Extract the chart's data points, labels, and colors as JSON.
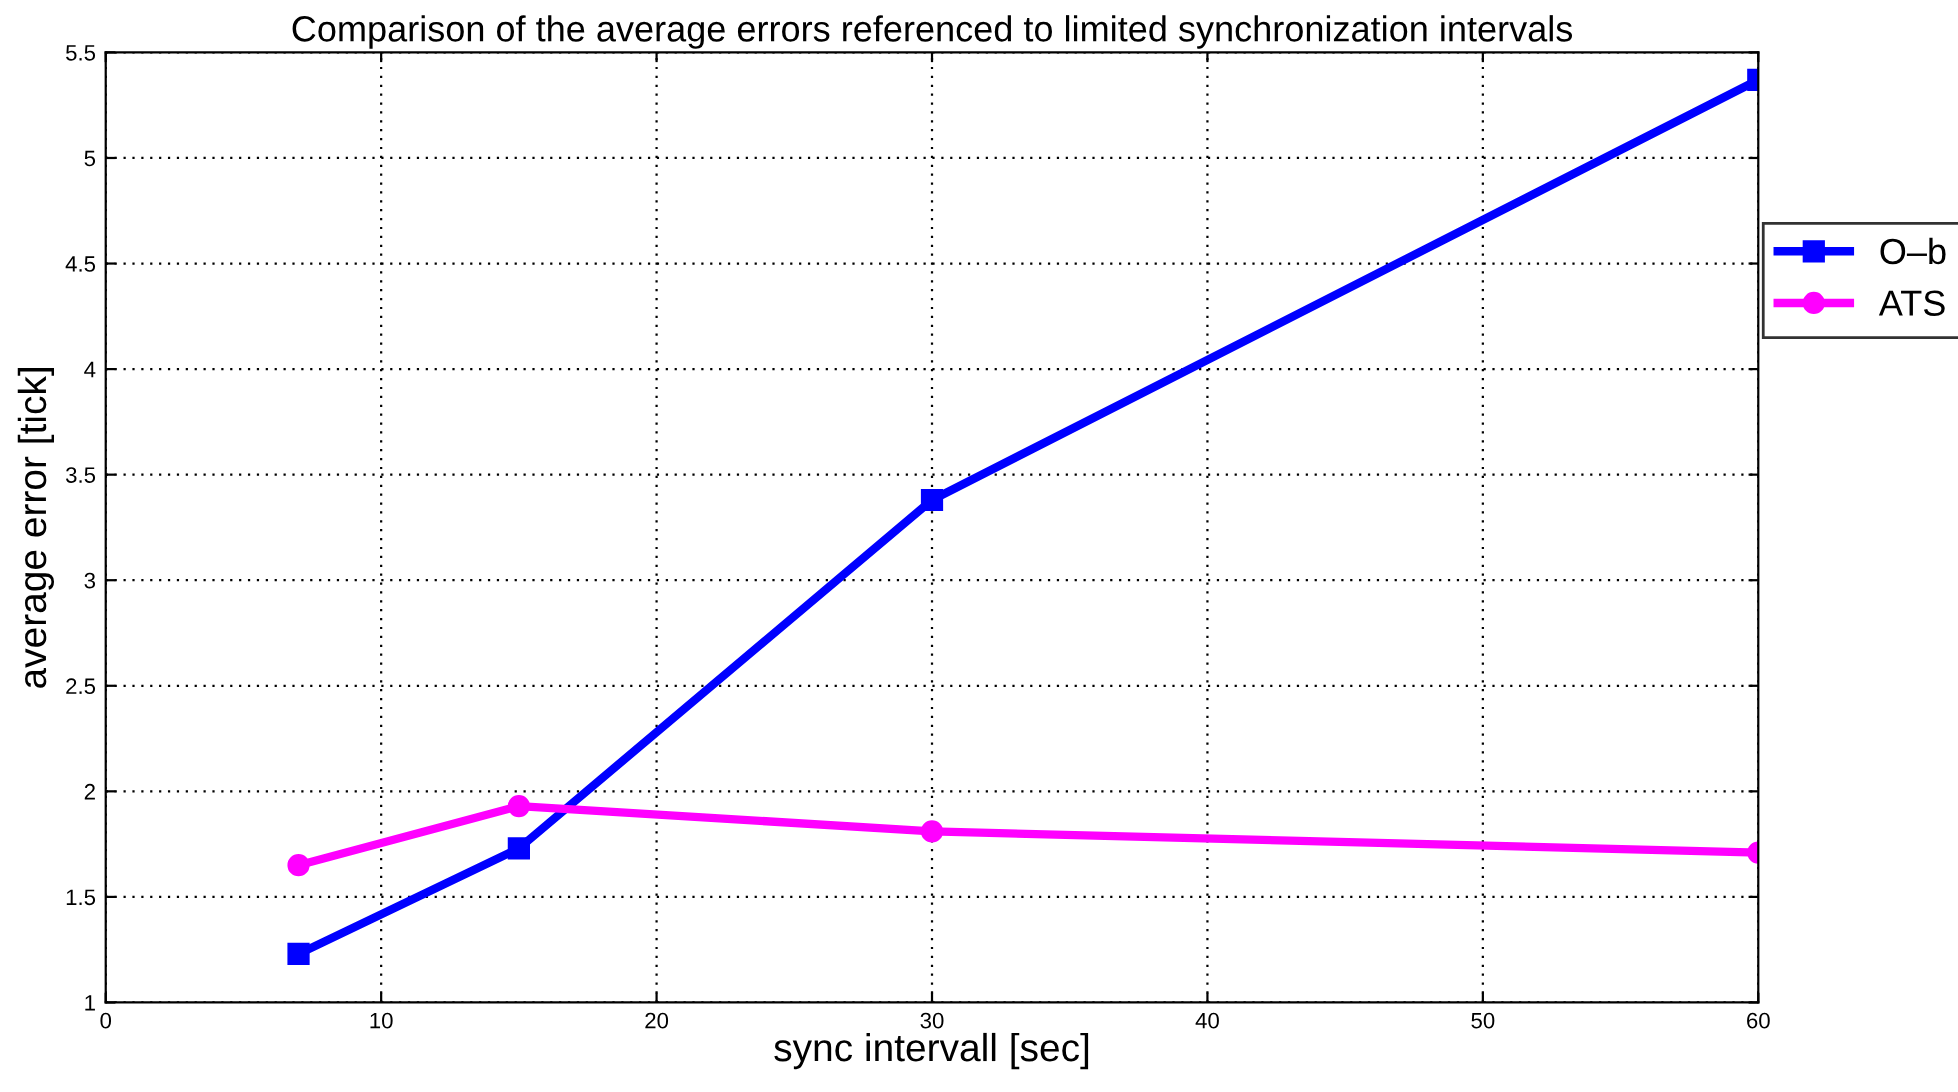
{
  "chart_data": {
    "type": "line",
    "title": "Comparison of the average errors referenced to limited synchronization intervals",
    "xlabel": "sync intervall [sec]",
    "ylabel": "average error [tick]",
    "x": [
      7,
      15,
      30,
      60
    ],
    "series": [
      {
        "name": "O–b",
        "color": "#0000ff",
        "marker": "square",
        "values": [
          1.23,
          1.73,
          3.38,
          5.37
        ]
      },
      {
        "name": "ATS",
        "color": "#ff00ff",
        "marker": "circle",
        "values": [
          1.65,
          1.93,
          1.81,
          1.71
        ]
      }
    ],
    "xlim": [
      0,
      60
    ],
    "xticks": [
      0,
      10,
      20,
      30,
      40,
      50,
      60
    ],
    "ylim": [
      1,
      5.5
    ],
    "yticks": [
      1,
      1.5,
      2,
      2.5,
      3,
      3.5,
      4,
      4.5,
      5,
      5.5
    ],
    "grid": true,
    "legend": "right",
    "line_style": "solid"
  }
}
